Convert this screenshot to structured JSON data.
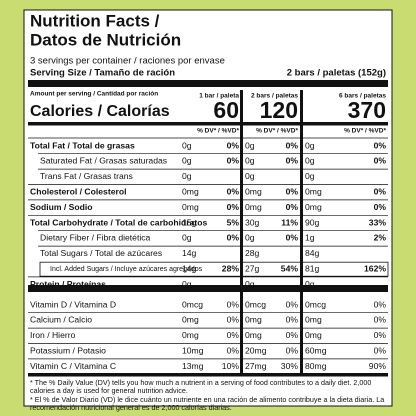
{
  "title": "Nutrition Facts /",
  "subtitle": "Datos de Nutrición",
  "servings": "3 servings per container / raciones por envase",
  "serving_size_label": "Serving Size / Tamaño de ración",
  "serving_size_value": "2 bars / paletas (152g)",
  "amount_label": "Amount per serving / Cantidad por ración",
  "calories_label": "Calories / Calorías",
  "columns": [
    {
      "header": "1 bar / paleta",
      "calories": "60",
      "dv_header": "% DV* / %VD*"
    },
    {
      "header": "2 bars / paletas",
      "calories": "120",
      "dv_header": "% DV* / %VD*"
    },
    {
      "header": "6 bars / paletas",
      "calories": "370",
      "dv_header": "% DV* / %VD*"
    }
  ],
  "rows": [
    {
      "label": "Total Fat / Total de grasas",
      "values": [
        [
          "0g",
          "0%"
        ],
        [
          "0g",
          "0%"
        ],
        [
          "0g",
          "0%"
        ]
      ]
    },
    {
      "label": "Saturated Fat / Grasas saturadas",
      "values": [
        [
          "0g",
          "0%"
        ],
        [
          "0g",
          "0%"
        ],
        [
          "0g",
          "0%"
        ]
      ]
    },
    {
      "label": "Trans Fat / Grasas trans",
      "values": [
        [
          "0g"
        ],
        [
          "0g"
        ],
        [
          "0g"
        ]
      ]
    },
    {
      "label": "Cholesterol / Colesterol",
      "values": [
        [
          "0mg",
          "0%"
        ],
        [
          "0mg",
          "0%"
        ],
        [
          "0mg",
          "0%"
        ]
      ]
    },
    {
      "label": "Sodium / Sodio",
      "values": [
        [
          "0mg",
          "0%"
        ],
        [
          "0mg",
          "0%"
        ],
        [
          "0mg",
          "0%"
        ]
      ]
    },
    {
      "label": "Total Carbohydrate / Total de carbohidratos",
      "values": [
        [
          "15g",
          "5%"
        ],
        [
          "30g",
          "11%"
        ],
        [
          "90g",
          "33%"
        ]
      ]
    },
    {
      "label": "Dietary Fiber / Fibra dietética",
      "values": [
        [
          "0g",
          "0%"
        ],
        [
          "0g",
          "0%"
        ],
        [
          "1g",
          "2%"
        ]
      ]
    },
    {
      "label": "Total Sugars / Total de azúcares",
      "values": [
        [
          "14g"
        ],
        [
          "28g"
        ],
        [
          "84g"
        ]
      ]
    },
    {
      "label": "Incl. Added Sugars / Incluye azúcares agregados",
      "values": [
        [
          "14g",
          "28%"
        ],
        [
          "27g",
          "54%"
        ],
        [
          "81g",
          "162%"
        ]
      ]
    },
    {
      "label": "Protein / Proteínas",
      "values": [
        [
          "0g"
        ],
        [
          "0g"
        ],
        [
          "0g"
        ]
      ]
    }
  ],
  "vitamins": [
    {
      "label": "Vitamin D / Vitamina D",
      "values": [
        [
          "0mcg",
          "0%"
        ],
        [
          "0mcg",
          "0%"
        ],
        [
          "0mcg",
          "0%"
        ]
      ]
    },
    {
      "label": "Calcium / Calcio",
      "values": [
        [
          "0mg",
          "0%"
        ],
        [
          "0mg",
          "0%"
        ],
        [
          "0mg",
          "0%"
        ]
      ]
    },
    {
      "label": "Iron / Hierro",
      "values": [
        [
          "0mg",
          "0%"
        ],
        [
          "0mg",
          "0%"
        ],
        [
          "0mg",
          "0%"
        ]
      ]
    },
    {
      "label": "Potassium / Potasio",
      "values": [
        [
          "10mg",
          "0%"
        ],
        [
          "20mg",
          "0%"
        ],
        [
          "60mg",
          "0%"
        ]
      ]
    },
    {
      "label": "Vitamin C / Vitamina C",
      "values": [
        [
          "13mg",
          "10%"
        ],
        [
          "27mg",
          "30%"
        ],
        [
          "80mg",
          "90%"
        ]
      ]
    }
  ],
  "footnotes": [
    "* The % Daily Value (DV) tells you how much a nutrient in a serving of food contributes to a daily diet. 2,000 calories a day is used for general nutrition advice.",
    "* El % de Valor Diario (VD) le dice cuánto un nutriente en una ración de alimento contribuye a la dieta diaria. La recomendación nutricional general es de 2,000 calorías diarias."
  ]
}
